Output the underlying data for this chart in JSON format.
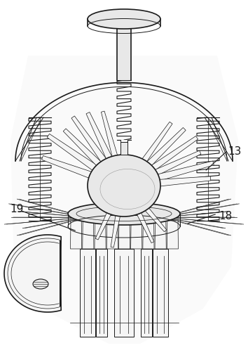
{
  "bg_color": "#ffffff",
  "line_color": "#1a1a1a",
  "fill_light": "#f5f5f5",
  "fill_mid": "#e8e8e8",
  "label_color": "#1a1a1a",
  "figsize": [
    3.54,
    5.06
  ],
  "dpi": 100,
  "labels": {
    "13": [
      0.8,
      0.435
    ],
    "18": [
      0.855,
      0.56
    ],
    "19": [
      0.055,
      0.575
    ]
  }
}
